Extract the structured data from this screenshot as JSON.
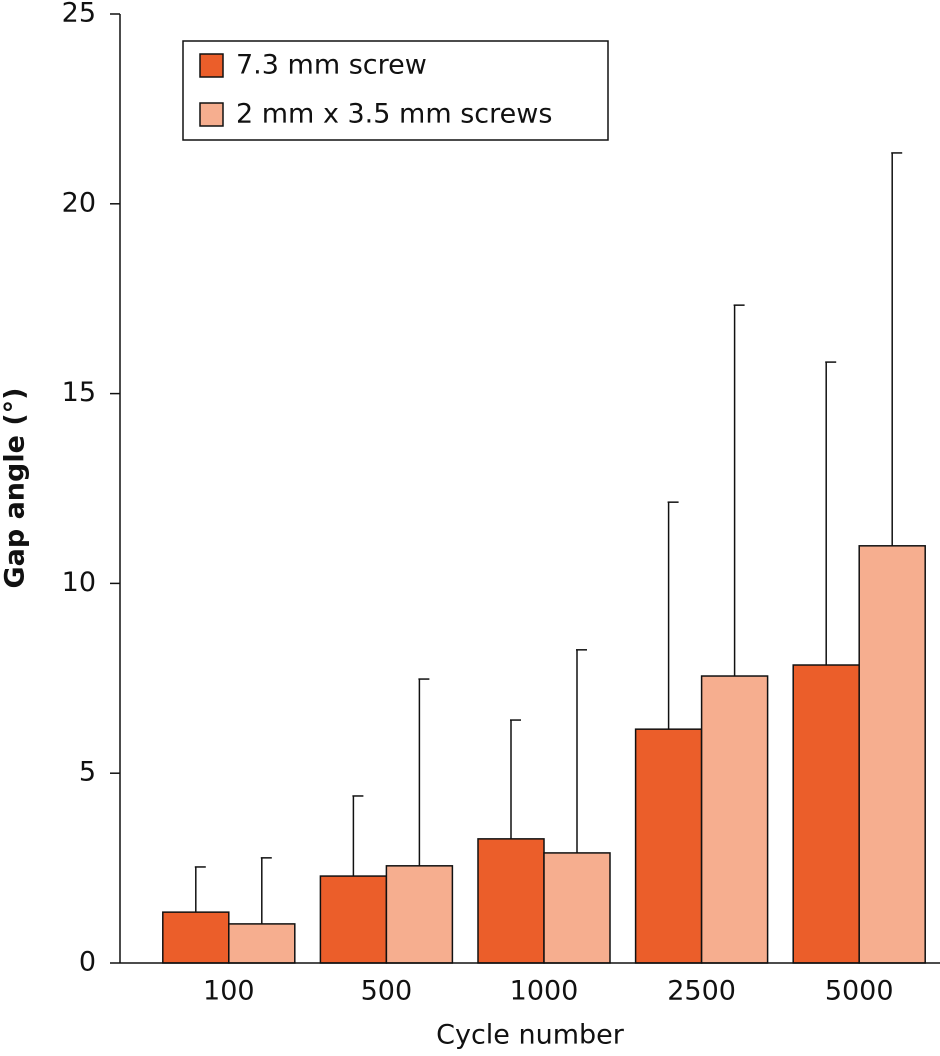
{
  "chart_data": {
    "type": "bar",
    "x_label": "Cycle number",
    "y_label": "Gap angle (°)",
    "categories": [
      "100",
      "500",
      "1000",
      "2500",
      "5000"
    ],
    "series": [
      {
        "name": "7.3 mm screw",
        "color": "#eb5e2a",
        "values": [
          1.34,
          2.29,
          3.27,
          6.16,
          7.85
        ],
        "errors": [
          1.19,
          2.11,
          3.13,
          5.98,
          7.98
        ]
      },
      {
        "name": "2 mm x 3.5 mm screws",
        "color": "#f6ae8f",
        "values": [
          1.03,
          2.56,
          2.9,
          7.56,
          10.99
        ],
        "errors": [
          1.74,
          4.92,
          5.35,
          9.77,
          10.35
        ]
      }
    ],
    "ylim": [
      0,
      25
    ],
    "yticks": [
      0,
      5,
      10,
      15,
      20,
      25
    ],
    "grid": false,
    "legend": "upper left"
  }
}
